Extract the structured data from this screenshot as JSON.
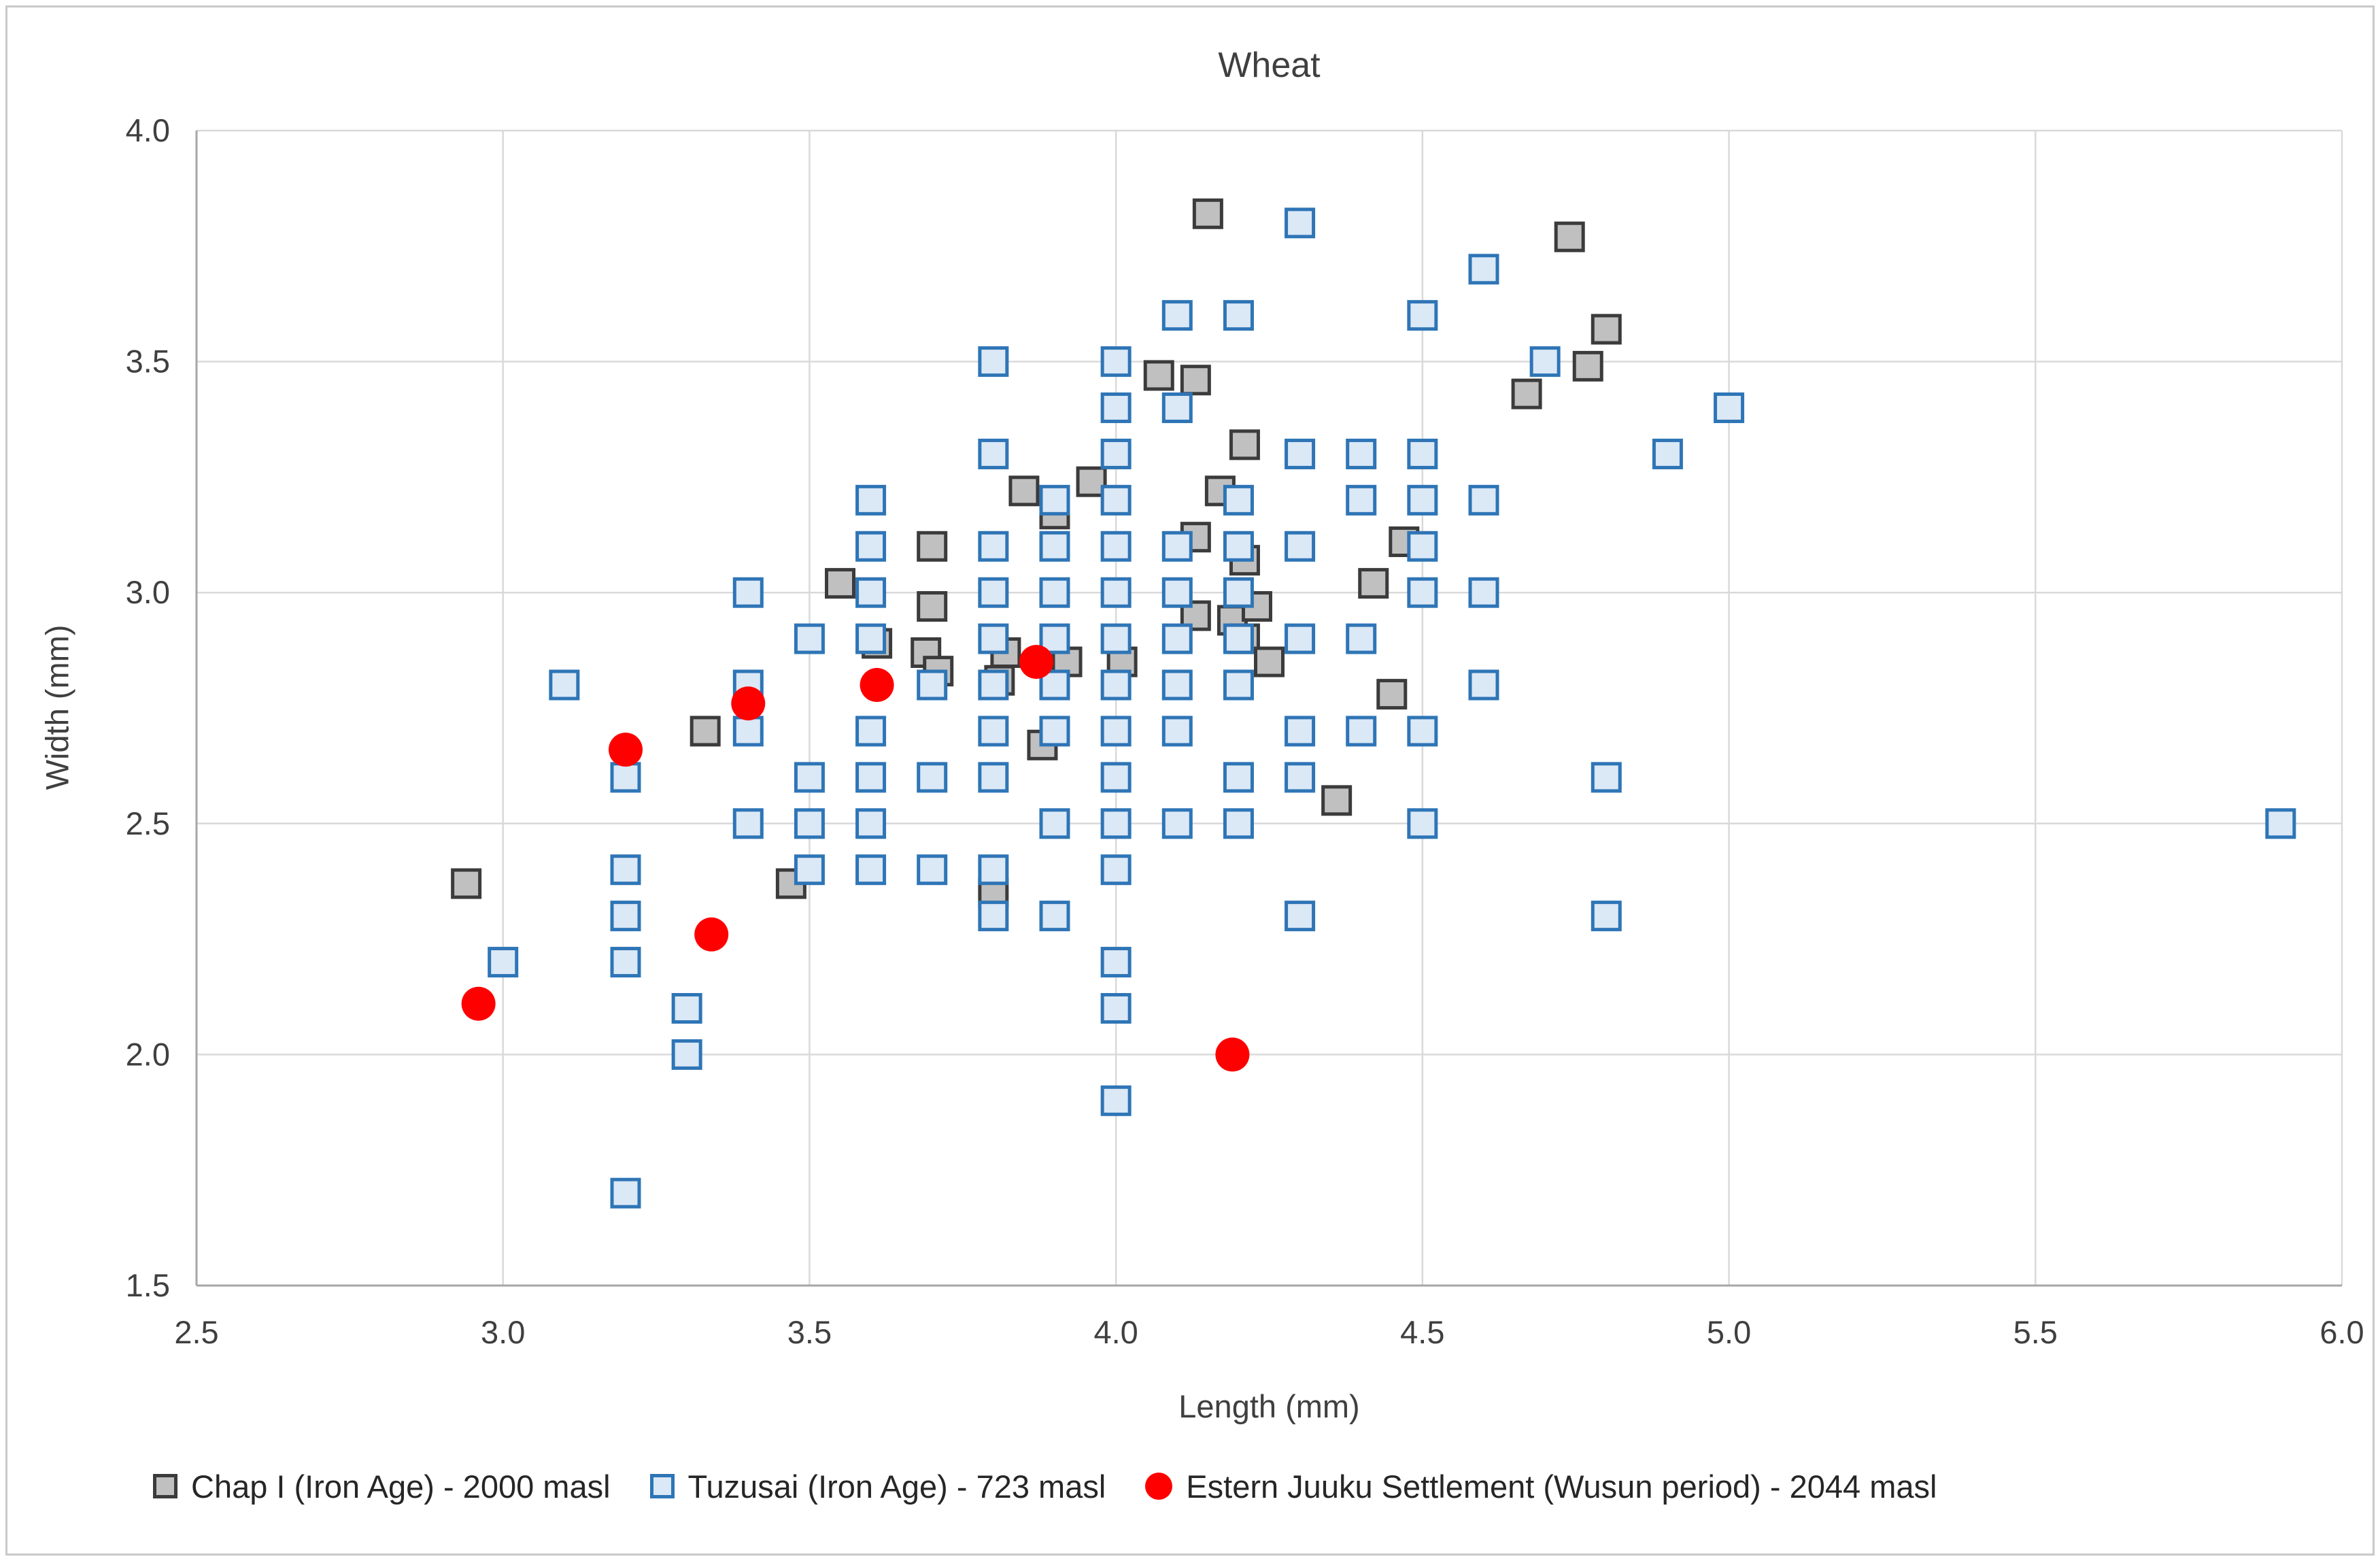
{
  "title": "Wheat",
  "axes": {
    "x": {
      "label": "Length (mm)",
      "min": 2.5,
      "max": 6.0,
      "tick_labels": [
        "2.5",
        "3.0",
        "3.5",
        "4.0",
        "4.5",
        "5.0",
        "5.5",
        "6.0"
      ]
    },
    "y": {
      "label": "Width (mm)",
      "min": 1.5,
      "max": 4.0,
      "tick_labels": [
        "1.5",
        "2.0",
        "2.5",
        "3.0",
        "3.5",
        "4.0"
      ]
    }
  },
  "colors": {
    "gridline": "#d9d9d9",
    "axis_line": "#a6a6a6",
    "text": "#3f3f3f",
    "chap_fill": "#c0c0c0",
    "chap_stroke": "#3b3b3b",
    "tuzusai_fill": "#dbe8f6",
    "tuzusai_stroke": "#2e75b6",
    "juuku_fill": "#fe0000"
  },
  "legend": [
    {
      "label": "Chap I (Iron Age) - 2000 masl",
      "marker": "gray-square"
    },
    {
      "label": "Tuzusai (Iron Age) - 723 masl",
      "marker": "blue-square"
    },
    {
      "label": "Estern Juuku Settlement (Wusun period) - 2044 masl",
      "marker": "red-circle"
    }
  ],
  "chart_data": {
    "type": "scatter",
    "title": "Wheat",
    "xlabel": "Length (mm)",
    "ylabel": "Width (mm)",
    "xlim": [
      2.5,
      6.0
    ],
    "ylim": [
      1.5,
      4.0
    ],
    "grid": true,
    "legend_position": "bottom",
    "series": [
      {
        "name": "Chap I (Iron Age) - 2000 masl",
        "marker": {
          "shape": "square",
          "fill": "#c0c0c0",
          "stroke": "#3b3b3b"
        },
        "points": [
          [
            4.15,
            3.82
          ],
          [
            4.74,
            3.77
          ],
          [
            4.8,
            3.57
          ],
          [
            4.77,
            3.49
          ],
          [
            4.67,
            3.43
          ],
          [
            4.07,
            3.47
          ],
          [
            4.13,
            3.46
          ],
          [
            4.21,
            3.32
          ],
          [
            3.96,
            3.24
          ],
          [
            3.85,
            3.22
          ],
          [
            3.9,
            3.17
          ],
          [
            4.17,
            3.22
          ],
          [
            4.13,
            3.12
          ],
          [
            4.21,
            3.07
          ],
          [
            3.7,
            3.1
          ],
          [
            3.55,
            3.02
          ],
          [
            3.7,
            2.97
          ],
          [
            4.13,
            2.95
          ],
          [
            4.19,
            2.94
          ],
          [
            4.23,
            2.97
          ],
          [
            4.21,
            2.9
          ],
          [
            4.25,
            2.85
          ],
          [
            3.61,
            2.89
          ],
          [
            3.69,
            2.87
          ],
          [
            3.71,
            2.83
          ],
          [
            3.82,
            2.87
          ],
          [
            3.81,
            2.81
          ],
          [
            3.92,
            2.85
          ],
          [
            4.01,
            2.85
          ],
          [
            3.88,
            2.67
          ],
          [
            4.45,
            2.78
          ],
          [
            4.47,
            3.11
          ],
          [
            4.42,
            3.02
          ],
          [
            4.36,
            2.55
          ],
          [
            3.47,
            2.37
          ],
          [
            3.33,
            2.7
          ],
          [
            2.94,
            2.37
          ],
          [
            3.8,
            2.35
          ]
        ]
      },
      {
        "name": "Tuzusai (Iron Age) - 723 masl",
        "marker": {
          "shape": "square",
          "fill": "#dbe8f6",
          "stroke": "#2e75b6"
        },
        "points": [
          [
            4.3,
            3.8
          ],
          [
            4.6,
            3.7
          ],
          [
            4.1,
            3.6
          ],
          [
            4.2,
            3.6
          ],
          [
            4.5,
            3.6
          ],
          [
            3.8,
            3.5
          ],
          [
            4.0,
            3.5
          ],
          [
            4.7,
            3.5
          ],
          [
            4.0,
            3.4
          ],
          [
            4.1,
            3.4
          ],
          [
            5.0,
            3.4
          ],
          [
            3.8,
            3.3
          ],
          [
            4.0,
            3.3
          ],
          [
            4.3,
            3.3
          ],
          [
            4.4,
            3.3
          ],
          [
            4.5,
            3.3
          ],
          [
            4.9,
            3.3
          ],
          [
            3.6,
            3.2
          ],
          [
            3.9,
            3.2
          ],
          [
            4.0,
            3.2
          ],
          [
            4.2,
            3.2
          ],
          [
            4.4,
            3.2
          ],
          [
            4.5,
            3.2
          ],
          [
            4.6,
            3.2
          ],
          [
            3.6,
            3.1
          ],
          [
            3.8,
            3.1
          ],
          [
            3.9,
            3.1
          ],
          [
            4.0,
            3.1
          ],
          [
            4.1,
            3.1
          ],
          [
            4.2,
            3.1
          ],
          [
            4.3,
            3.1
          ],
          [
            4.5,
            3.1
          ],
          [
            3.4,
            3.0
          ],
          [
            3.6,
            3.0
          ],
          [
            3.8,
            3.0
          ],
          [
            3.9,
            3.0
          ],
          [
            4.0,
            3.0
          ],
          [
            4.1,
            3.0
          ],
          [
            4.2,
            3.0
          ],
          [
            4.5,
            3.0
          ],
          [
            4.6,
            3.0
          ],
          [
            3.5,
            2.9
          ],
          [
            3.6,
            2.9
          ],
          [
            3.8,
            2.9
          ],
          [
            3.9,
            2.9
          ],
          [
            4.0,
            2.9
          ],
          [
            4.1,
            2.9
          ],
          [
            4.2,
            2.9
          ],
          [
            4.3,
            2.9
          ],
          [
            4.4,
            2.9
          ],
          [
            3.1,
            2.8
          ],
          [
            3.4,
            2.8
          ],
          [
            3.7,
            2.8
          ],
          [
            3.8,
            2.8
          ],
          [
            3.9,
            2.8
          ],
          [
            4.0,
            2.8
          ],
          [
            4.1,
            2.8
          ],
          [
            4.2,
            2.8
          ],
          [
            4.6,
            2.8
          ],
          [
            3.4,
            2.7
          ],
          [
            3.6,
            2.7
          ],
          [
            3.8,
            2.7
          ],
          [
            3.9,
            2.7
          ],
          [
            4.0,
            2.7
          ],
          [
            4.1,
            2.7
          ],
          [
            4.3,
            2.7
          ],
          [
            4.4,
            2.7
          ],
          [
            4.5,
            2.7
          ],
          [
            3.2,
            2.6
          ],
          [
            3.5,
            2.6
          ],
          [
            3.6,
            2.6
          ],
          [
            3.7,
            2.6
          ],
          [
            3.8,
            2.6
          ],
          [
            4.0,
            2.6
          ],
          [
            4.2,
            2.6
          ],
          [
            4.3,
            2.6
          ],
          [
            4.8,
            2.6
          ],
          [
            3.4,
            2.5
          ],
          [
            3.5,
            2.5
          ],
          [
            3.6,
            2.5
          ],
          [
            3.9,
            2.5
          ],
          [
            4.0,
            2.5
          ],
          [
            4.1,
            2.5
          ],
          [
            4.2,
            2.5
          ],
          [
            4.5,
            2.5
          ],
          [
            5.9,
            2.5
          ],
          [
            3.2,
            2.4
          ],
          [
            3.5,
            2.4
          ],
          [
            3.6,
            2.4
          ],
          [
            3.7,
            2.4
          ],
          [
            3.8,
            2.4
          ],
          [
            4.0,
            2.4
          ],
          [
            3.2,
            2.3
          ],
          [
            3.8,
            2.3
          ],
          [
            3.9,
            2.3
          ],
          [
            4.3,
            2.3
          ],
          [
            4.8,
            2.3
          ],
          [
            3.0,
            2.2
          ],
          [
            3.2,
            2.2
          ],
          [
            4.0,
            2.2
          ],
          [
            3.3,
            2.1
          ],
          [
            4.0,
            2.1
          ],
          [
            3.3,
            2.0
          ],
          [
            4.0,
            1.9
          ],
          [
            3.2,
            1.7
          ]
        ]
      },
      {
        "name": "Estern Juuku Settlement (Wusun period) - 2044 masl",
        "marker": {
          "shape": "circle",
          "fill": "#fe0000",
          "stroke": "none"
        },
        "points": [
          [
            2.96,
            2.11
          ],
          [
            3.2,
            2.66
          ],
          [
            3.34,
            2.26
          ],
          [
            3.4,
            2.76
          ],
          [
            3.61,
            2.8
          ],
          [
            3.87,
            2.85
          ],
          [
            4.19,
            2.0
          ]
        ]
      }
    ]
  }
}
